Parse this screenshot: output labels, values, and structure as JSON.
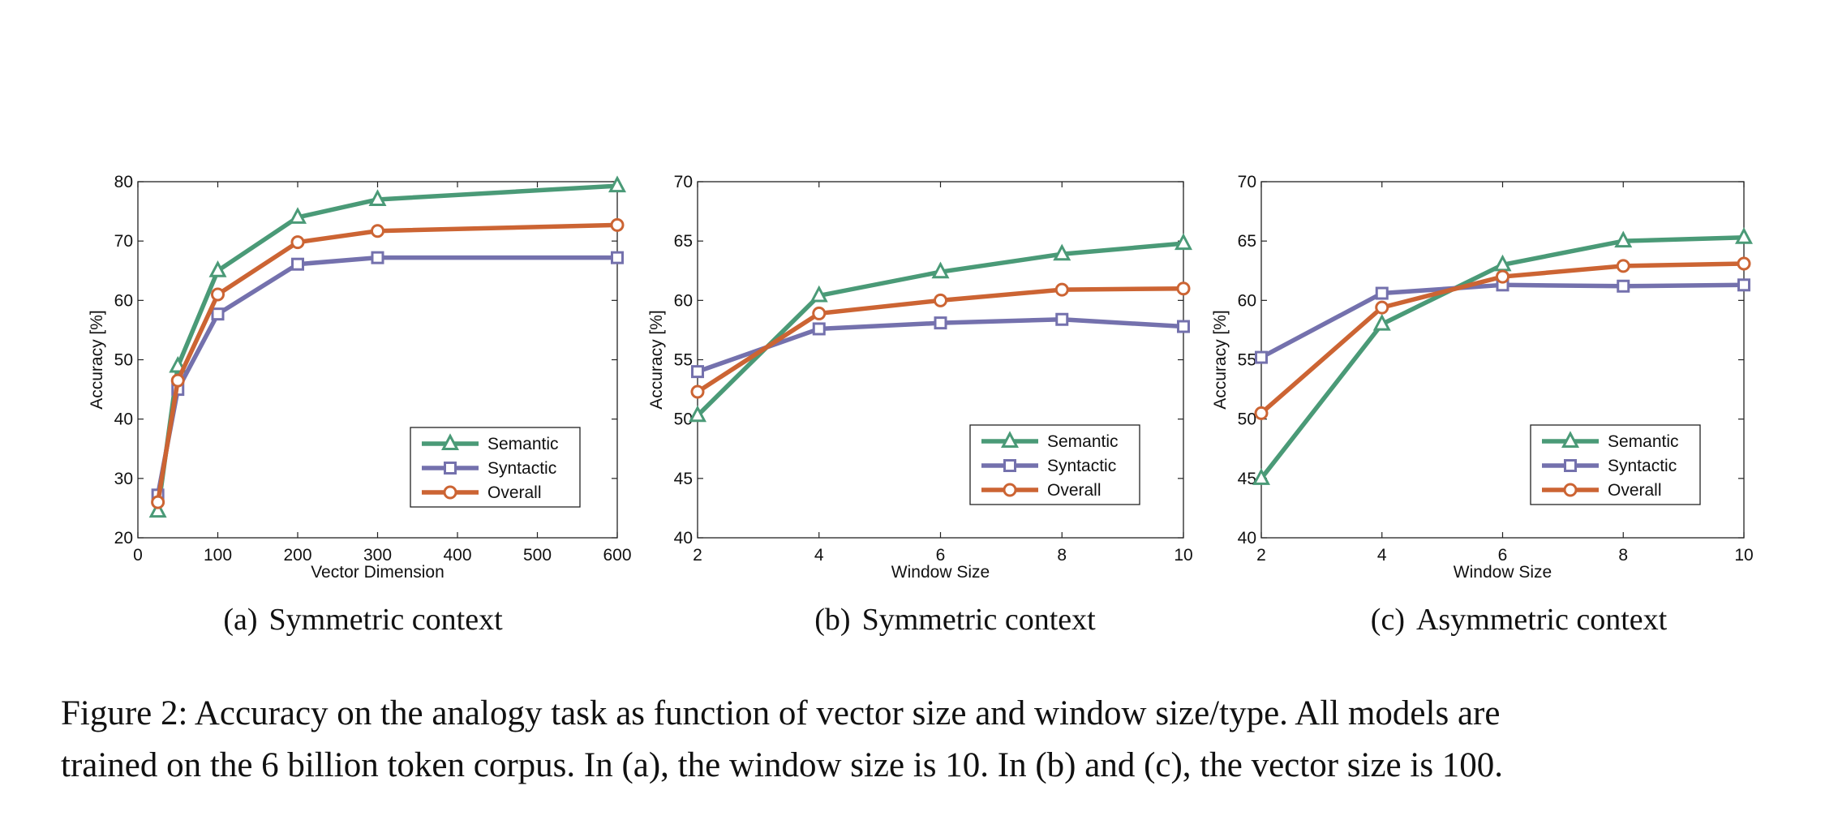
{
  "colors": {
    "semantic": "#4a9a77",
    "syntactic": "#7471ad",
    "overall": "#cc6433"
  },
  "caption": {
    "line1": "Figure 2: Accuracy on the analogy task as function of vector size and window size/type. All models are",
    "line2": "trained on the 6 billion token corpus. In (a), the window size is 10. In (b) and (c), the vector size is 100."
  },
  "chart_data": [
    {
      "type": "line",
      "subcaption_label": "(a)",
      "subcaption": "Symmetric context",
      "xlabel": "Vector Dimension",
      "ylabel": "Accuracy [%]",
      "xlim": [
        0,
        600
      ],
      "ylim": [
        20,
        80
      ],
      "xticks": [
        0,
        100,
        200,
        300,
        400,
        500,
        600
      ],
      "yticks": [
        20,
        30,
        40,
        50,
        60,
        70,
        80
      ],
      "grid": false,
      "legend_position": "lower-right",
      "x": [
        25,
        50,
        100,
        200,
        300,
        600
      ],
      "series": [
        {
          "name": "Semantic",
          "marker": "triangle",
          "values": [
            24.5,
            48.9,
            65.0,
            74.0,
            77.0,
            79.3
          ]
        },
        {
          "name": "Syntactic",
          "marker": "square",
          "values": [
            27.2,
            45.0,
            57.7,
            66.1,
            67.2,
            67.2
          ]
        },
        {
          "name": "Overall",
          "marker": "circle",
          "values": [
            26.0,
            46.5,
            61.0,
            69.8,
            71.7,
            72.7
          ]
        }
      ]
    },
    {
      "type": "line",
      "subcaption_label": "(b)",
      "subcaption": "Symmetric context",
      "xlabel": "Window Size",
      "ylabel": "Accuracy [%]",
      "xlim": [
        2,
        10
      ],
      "ylim": [
        40,
        70
      ],
      "xticks": [
        2,
        4,
        6,
        8,
        10
      ],
      "yticks": [
        40,
        45,
        50,
        55,
        60,
        65,
        70
      ],
      "grid": false,
      "legend_position": "lower-right",
      "x": [
        2,
        4,
        6,
        8,
        10
      ],
      "series": [
        {
          "name": "Semantic",
          "marker": "triangle",
          "values": [
            50.3,
            60.4,
            62.4,
            63.9,
            64.8
          ]
        },
        {
          "name": "Syntactic",
          "marker": "square",
          "values": [
            54.0,
            57.6,
            58.1,
            58.4,
            57.8
          ]
        },
        {
          "name": "Overall",
          "marker": "circle",
          "values": [
            52.3,
            58.9,
            60.0,
            60.9,
            61.0
          ]
        }
      ]
    },
    {
      "type": "line",
      "subcaption_label": "(c)",
      "subcaption": "Asymmetric context",
      "xlabel": "Window Size",
      "ylabel": "Accuracy [%]",
      "xlim": [
        2,
        10
      ],
      "ylim": [
        40,
        70
      ],
      "xticks": [
        2,
        4,
        6,
        8,
        10
      ],
      "yticks": [
        40,
        45,
        50,
        55,
        60,
        65,
        70
      ],
      "grid": false,
      "legend_position": "lower-right",
      "x": [
        2,
        4,
        6,
        8,
        10
      ],
      "series": [
        {
          "name": "Semantic",
          "marker": "triangle",
          "values": [
            45.0,
            58.0,
            63.0,
            65.0,
            65.3
          ]
        },
        {
          "name": "Syntactic",
          "marker": "square",
          "values": [
            55.2,
            60.6,
            61.3,
            61.2,
            61.3
          ]
        },
        {
          "name": "Overall",
          "marker": "circle",
          "values": [
            50.5,
            59.4,
            62.0,
            62.9,
            63.1
          ]
        }
      ]
    }
  ]
}
